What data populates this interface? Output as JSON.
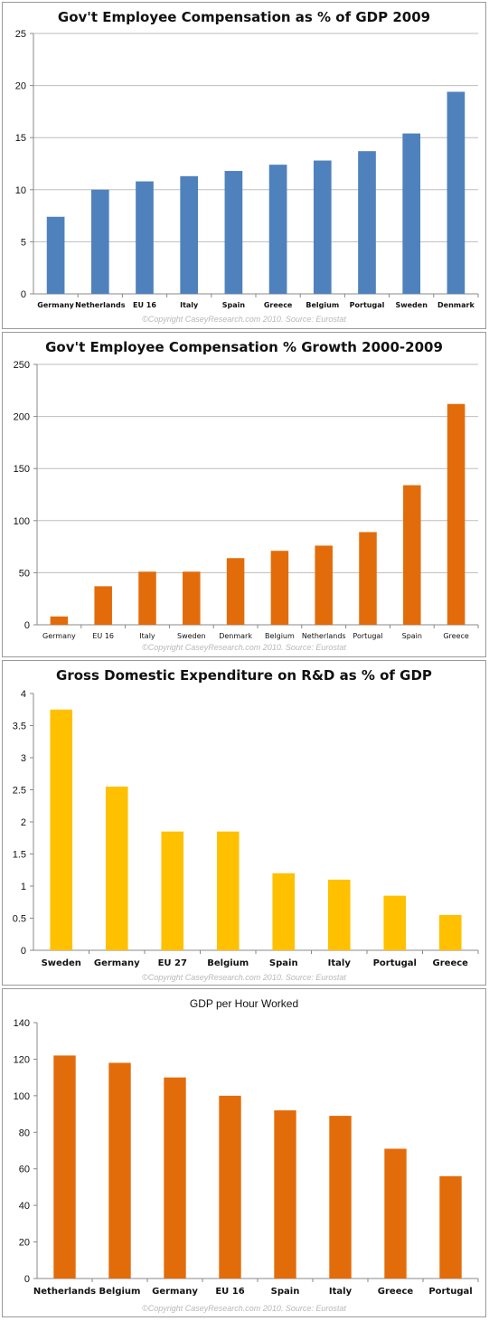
{
  "chart_data": [
    {
      "type": "bar",
      "title": "Gov't Employee Compensation as % of GDP 2009",
      "categories": [
        "Germany",
        "Netherlands",
        "EU 16",
        "Italy",
        "Spain",
        "Greece",
        "Belgium",
        "Portugal",
        "Sweden",
        "Denmark"
      ],
      "values": [
        7.4,
        10.0,
        10.8,
        11.3,
        11.8,
        12.4,
        12.8,
        13.7,
        15.4,
        19.4
      ],
      "ylim": [
        0,
        25
      ],
      "yticks": [
        0,
        5,
        10,
        15,
        20,
        25
      ],
      "color": "#4f81bd",
      "grid": true,
      "copyright": "©Copyright CaseyResearch.com 2010. Source: Eurostat"
    },
    {
      "type": "bar",
      "title": "Gov't Employee Compensation % Growth 2000-2009",
      "categories": [
        "Germany",
        "EU 16",
        "Italy",
        "Sweden",
        "Denmark",
        "Belgium",
        "Netherlands",
        "Portugal",
        "Spain",
        "Greece"
      ],
      "values": [
        8,
        37,
        51,
        51,
        64,
        71,
        76,
        89,
        134,
        212
      ],
      "ylim": [
        0,
        250
      ],
      "yticks": [
        0,
        50,
        100,
        150,
        200,
        250
      ],
      "color": "#e36c0a",
      "grid": true,
      "copyright": "©Copyright CaseyResearch.com 2010. Source: Eurostat"
    },
    {
      "type": "bar",
      "title": "Gross Domestic Expenditure on R&D as % of GDP",
      "categories": [
        "Sweden",
        "Germany",
        "EU 27",
        "Belgium",
        "Spain",
        "Italy",
        "Portugal",
        "Greece"
      ],
      "values": [
        3.75,
        2.55,
        1.85,
        1.85,
        1.2,
        1.1,
        0.85,
        0.55
      ],
      "ylim": [
        0,
        4
      ],
      "yticks": [
        0,
        0.5,
        1,
        1.5,
        2,
        2.5,
        3,
        3.5,
        4
      ],
      "color": "#ffc000",
      "grid": false,
      "copyright": "©Copyright CaseyResearch.com 2010. Source: Eurostat"
    },
    {
      "type": "bar",
      "title": "GDP per Hour Worked",
      "categories": [
        "Netherlands",
        "Belgium",
        "Germany",
        "EU 16",
        "Spain",
        "Italy",
        "Greece",
        "Portugal"
      ],
      "values": [
        122,
        118,
        110,
        100,
        92,
        89,
        71,
        56
      ],
      "ylim": [
        0,
        140
      ],
      "yticks": [
        0,
        20,
        40,
        60,
        80,
        100,
        120,
        140
      ],
      "color": "#e36c0a",
      "grid": false,
      "copyright": "©Copyright CaseyResearch.com 2010. Source: Eurostat"
    }
  ]
}
